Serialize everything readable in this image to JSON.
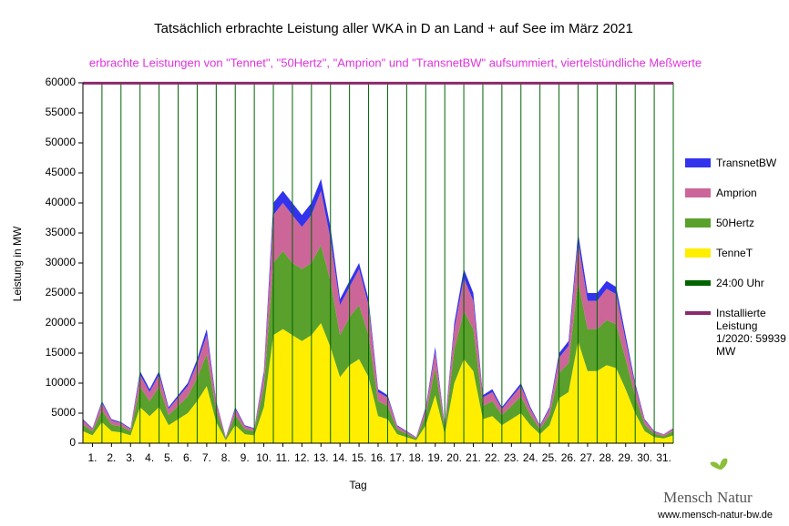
{
  "chart_data": {
    "type": "stacked_area",
    "title": "Tatsächlich erbrachte Leistung aller WKA in D an Land + auf See im März 2021",
    "subtitle": "erbrachte Leistungen von \"Tennet\", \"50Hertz\", \"Amprion\" und \"TransnetBW\" aufsummiert, viertelstündliche Meßwerte",
    "ylabel": "Leistung in MW",
    "xlabel": "Tag",
    "logo_left": "Mensch",
    "logo_right": "Natur",
    "website": "www.mensch-natur-bw.de",
    "xlim": [
      0,
      31
    ],
    "ylim": [
      0,
      60000
    ],
    "yticks": [
      0,
      5000,
      10000,
      15000,
      20000,
      25000,
      30000,
      35000,
      40000,
      45000,
      50000,
      55000,
      60000
    ],
    "xticks": [
      {
        "value": 0.5,
        "label": "1."
      },
      {
        "value": 1.5,
        "label": "2."
      },
      {
        "value": 2.5,
        "label": "3."
      },
      {
        "value": 3.5,
        "label": "4."
      },
      {
        "value": 4.5,
        "label": "5."
      },
      {
        "value": 5.5,
        "label": "6."
      },
      {
        "value": 6.5,
        "label": "7."
      },
      {
        "value": 7.5,
        "label": "8."
      },
      {
        "value": 8.5,
        "label": "9."
      },
      {
        "value": 9.5,
        "label": "10."
      },
      {
        "value": 10.5,
        "label": "11."
      },
      {
        "value": 11.5,
        "label": "12."
      },
      {
        "value": 12.5,
        "label": "13."
      },
      {
        "value": 13.5,
        "label": "14."
      },
      {
        "value": 14.5,
        "label": "15."
      },
      {
        "value": 15.5,
        "label": "16."
      },
      {
        "value": 16.5,
        "label": "17."
      },
      {
        "value": 17.5,
        "label": "18."
      },
      {
        "value": 18.5,
        "label": "19."
      },
      {
        "value": 19.5,
        "label": "20."
      },
      {
        "value": 20.5,
        "label": "21."
      },
      {
        "value": 21.5,
        "label": "22."
      },
      {
        "value": 22.5,
        "label": "23."
      },
      {
        "value": 23.5,
        "label": "24."
      },
      {
        "value": 24.5,
        "label": "25."
      },
      {
        "value": 25.5,
        "label": "26."
      },
      {
        "value": 26.5,
        "label": "27."
      },
      {
        "value": 27.5,
        "label": "28."
      },
      {
        "value": 28.5,
        "label": "29."
      },
      {
        "value": 29.5,
        "label": "30."
      },
      {
        "value": 30.5,
        "label": "31."
      }
    ],
    "x": [
      0,
      0.5,
      1,
      1.5,
      2,
      2.5,
      3,
      3.5,
      4,
      4.5,
      5,
      5.5,
      6,
      6.5,
      7,
      7.5,
      8,
      8.5,
      9,
      9.5,
      10,
      10.5,
      11,
      11.5,
      12,
      12.5,
      13,
      13.5,
      14,
      14.5,
      15,
      15.5,
      16,
      16.5,
      17,
      17.5,
      18,
      18.5,
      19,
      19.5,
      20,
      20.5,
      21,
      21.5,
      22,
      22.5,
      23,
      23.5,
      24,
      24.5,
      25,
      25.5,
      26,
      26.5,
      27,
      27.5,
      28,
      28.5,
      29,
      29.5,
      30,
      30.5,
      31
    ],
    "series": [
      {
        "name": "TenneT",
        "color": "#ffee00",
        "values": [
          2000,
          1300,
          3500,
          2000,
          1800,
          1300,
          6000,
          4500,
          6000,
          3000,
          4000,
          5000,
          7000,
          9500,
          3500,
          500,
          3000,
          1500,
          1300,
          6000,
          18000,
          19000,
          18000,
          17000,
          18000,
          20000,
          16000,
          11000,
          13000,
          14000,
          11000,
          4500,
          4000,
          1500,
          1000,
          500,
          3000,
          8000,
          1500,
          10000,
          14000,
          12000,
          4000,
          4500,
          3000,
          4000,
          5000,
          3000,
          1500,
          3000,
          7500,
          8500,
          17000,
          12000,
          12000,
          13000,
          12500,
          9000,
          5000,
          2000,
          1000,
          800,
          1300
        ]
      },
      {
        "name": "50Hertz",
        "color": "#5aa02c",
        "values": [
          1100,
          700,
          2000,
          1100,
          1000,
          700,
          3400,
          2500,
          3400,
          1700,
          2200,
          2800,
          3900,
          5300,
          2000,
          300,
          1700,
          850,
          700,
          3400,
          12000,
          13000,
          12000,
          12000,
          12000,
          13000,
          11000,
          7000,
          8000,
          9000,
          7000,
          2500,
          2200,
          850,
          550,
          300,
          1700,
          4500,
          850,
          5600,
          8000,
          7000,
          2200,
          2500,
          1700,
          2200,
          2800,
          1700,
          850,
          1700,
          4200,
          4800,
          10000,
          7000,
          7000,
          7500,
          7300,
          5000,
          2800,
          1100,
          550,
          400,
          700
        ]
      },
      {
        "name": "Amprion",
        "color": "#cc6699",
        "values": [
          700,
          400,
          1200,
          700,
          550,
          400,
          2000,
          1500,
          2000,
          1000,
          1400,
          1700,
          2400,
          3200,
          1200,
          150,
          1000,
          500,
          400,
          2000,
          8000,
          8000,
          8000,
          7000,
          8000,
          9000,
          7000,
          5000,
          5000,
          6000,
          5000,
          1500,
          1400,
          500,
          350,
          150,
          1000,
          2700,
          500,
          3400,
          5500,
          4700,
          1400,
          1500,
          1000,
          1400,
          1700,
          1000,
          500,
          1000,
          2500,
          2900,
          6500,
          4700,
          4700,
          5200,
          5000,
          3100,
          1700,
          700,
          350,
          250,
          400
        ]
      },
      {
        "name": "TransnetBW",
        "color": "#3333ee",
        "values": [
          200,
          100,
          300,
          200,
          150,
          100,
          600,
          500,
          600,
          300,
          400,
          500,
          700,
          1000,
          300,
          50,
          300,
          150,
          100,
          600,
          2000,
          2000,
          2000,
          2000,
          2000,
          2000,
          2000,
          1000,
          1000,
          1000,
          1000,
          500,
          400,
          150,
          100,
          50,
          300,
          800,
          150,
          1000,
          1500,
          1300,
          400,
          500,
          300,
          400,
          500,
          300,
          150,
          300,
          800,
          800,
          1500,
          1300,
          1300,
          1300,
          1200,
          900,
          500,
          200,
          100,
          50,
          100
        ]
      }
    ],
    "day_line": {
      "name": "24:00 Uhr",
      "color": "#006400"
    },
    "reference_lines": [
      {
        "name": "Installierte Leistung 1/2020: 59939 MW",
        "value": 59939,
        "color": "#8b2a6b"
      }
    ]
  }
}
